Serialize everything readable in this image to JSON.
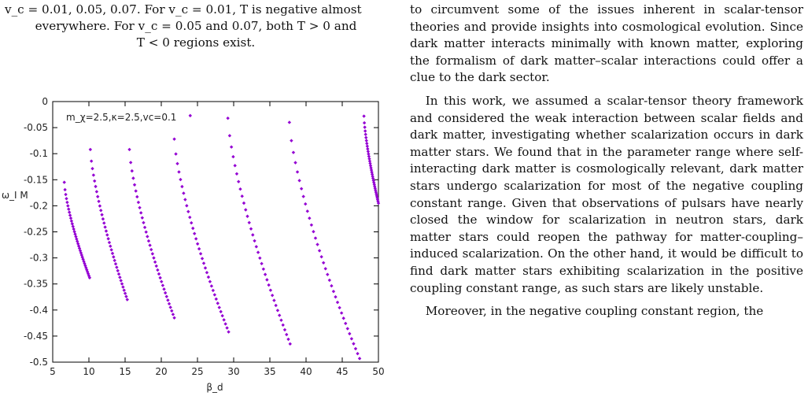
{
  "caption": {
    "line1": "v_c = 0.01, 0.05, 0.07. For v_c = 0.01, T is negative almost",
    "line2": "everywhere. For v_c = 0.05 and 0.07, both T > 0 and",
    "line3": "T < 0 regions exist."
  },
  "body": {
    "p1": "to circumvent some of the issues inherent in scalar-tensor theories and provide insights into cosmological evolution. Since dark matter interacts minimally with known matter, exploring the formalism of dark matter–scalar interactions could offer a clue to the dark sector.",
    "p2": "In this work, we assumed a scalar-tensor theory framework and considered the weak interaction between scalar fields and dark matter, investigating whether scalarization occurs in dark matter stars. We found that in the parameter range where self-interacting dark matter is cosmologically relevant, dark matter stars undergo scalarization for most of the negative coupling constant range. Given that observations of pulsars have nearly closed the window for scalarization in neutron stars, dark matter stars could reopen the pathway for matter-coupling–induced scalarization. On the other hand, it would be difficult to find dark matter stars exhibiting scalarization in the positive coupling constant range, as such stars are likely unstable.",
    "p3": "Moreover, in the negative coupling constant region, the"
  },
  "chart_data": {
    "type": "scatter",
    "xlabel": "β_d",
    "ylabel": "ω_I M",
    "legend": "m_χ=2.5,κ=2.5,vc=0.1",
    "legend_position": "top-left",
    "xlim": [
      5,
      50
    ],
    "ylim": [
      -0.5,
      0
    ],
    "xticks": [
      "5",
      "10",
      "15",
      "20",
      "25",
      "30",
      "35",
      "40",
      "45",
      "50"
    ],
    "yticks": [
      "0",
      "-0.05",
      "-0.1",
      "-0.15",
      "-0.2",
      "-0.25",
      "-0.3",
      "-0.35",
      "-0.4",
      "-0.45",
      "-0.5"
    ],
    "color": "#9400d3",
    "series": [
      {
        "x_start": 6.6,
        "x_end": 10.1,
        "y_start": -0.155,
        "y_end": -0.338
      },
      {
        "x_start": 10.2,
        "x_end": 15.3,
        "y_start": -0.092,
        "y_end": -0.38
      },
      {
        "x_start": 15.6,
        "x_end": 21.8,
        "y_start": -0.092,
        "y_end": -0.415
      },
      {
        "x_start": 21.8,
        "x_end": 29.3,
        "y_start": -0.072,
        "y_end": -0.442
      },
      {
        "x_start": 29.2,
        "x_end": 37.8,
        "y_start": -0.032,
        "y_end": -0.465
      },
      {
        "x_start": 37.7,
        "x_end": 47.4,
        "y_start": -0.04,
        "y_end": -0.493
      },
      {
        "x_start": 48.0,
        "x_end": 50.0,
        "y_start": -0.028,
        "y_end": -0.195
      }
    ],
    "isolated_points": [
      {
        "x": 24.0,
        "y": -0.027
      }
    ]
  }
}
